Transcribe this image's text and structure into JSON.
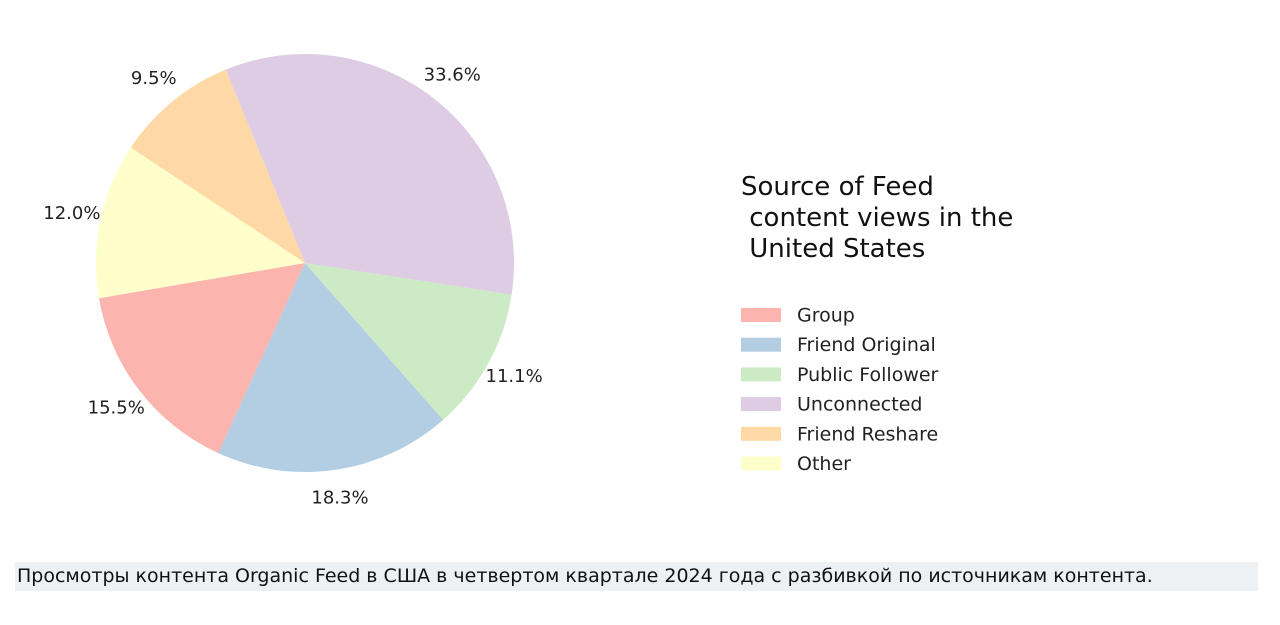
{
  "chart_data": {
    "type": "pie",
    "legend_title": "Source of Feed\n content views in the\n United States",
    "categories": [
      "Group",
      "Friend Original",
      "Public Follower",
      "Unconnected",
      "Friend Reshare",
      "Other"
    ],
    "values": [
      15.5,
      18.3,
      11.1,
      33.6,
      9.5,
      12.0
    ],
    "value_labels": [
      "15.5%",
      "18.3%",
      "11.1%",
      "33.6%",
      "9.5%",
      "12.0%"
    ],
    "colors": [
      "#fbb4ae",
      "#b3cde3",
      "#ccebc5",
      "#decbe4",
      "#fed9a6",
      "#ffffcc"
    ],
    "legend": "right"
  },
  "caption": "Просмотры контента Organic Feed в США в четвертом квартале 2024 года с разбивкой по источникам контента."
}
